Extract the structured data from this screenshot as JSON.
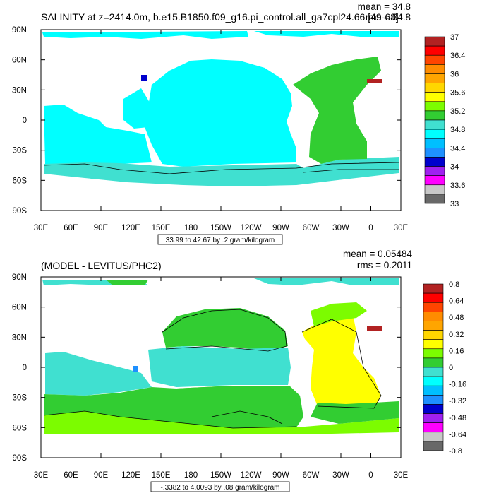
{
  "chart_data": [
    {
      "type": "heatmap",
      "title": "SALINITY at z=2414.0m, b.e15.B1850.f09_g16.pi_control.all_ga7cpl24.66 [49-68]",
      "stats": {
        "mean": "mean = 34.8",
        "rms": "rms = 34.8"
      },
      "ylim": [
        -90,
        90
      ],
      "xlim": [
        30,
        390
      ],
      "x_ticks": [
        "30E",
        "60E",
        "90E",
        "120E",
        "150E",
        "180",
        "150W",
        "120W",
        "90W",
        "60W",
        "30W",
        "0",
        "30E"
      ],
      "y_ticks": [
        "90N",
        "60N",
        "30N",
        "0",
        "30S",
        "60S",
        "90S"
      ],
      "range_label": "33.99 to 42.67 by .2 gram/kilogram",
      "colorbar": {
        "colors": [
          "#686868",
          "#c8c8c8",
          "#ff00ff",
          "#a020f0",
          "#0000cd",
          "#1e90ff",
          "#00bfff",
          "#00ffff",
          "#40e0d0",
          "#32cd32",
          "#7cfc00",
          "#ffff00",
          "#ffd700",
          "#ffa500",
          "#ff8c00",
          "#ff4500",
          "#ff0000",
          "#b22222"
        ],
        "labels": [
          "33",
          "33.6",
          "34",
          "34.4",
          "34.8",
          "35.2",
          "35.6",
          "36",
          "36.4",
          "37"
        ]
      }
    },
    {
      "type": "heatmap",
      "title": "(MODEL - LEVITUS/PHC2)",
      "stats": {
        "mean": "mean = 0.05484",
        "rms": "rms = 0.2011"
      },
      "ylim": [
        -90,
        90
      ],
      "xlim": [
        30,
        390
      ],
      "x_ticks": [
        "30E",
        "60E",
        "90E",
        "120E",
        "150E",
        "180",
        "150W",
        "120W",
        "90W",
        "60W",
        "30W",
        "0",
        "30E"
      ],
      "y_ticks": [
        "90N",
        "60N",
        "30N",
        "0",
        "30S",
        "60S",
        "90S"
      ],
      "range_label": "-.3382 to 4.0093 by .08 gram/kilogram",
      "colorbar": {
        "colors": [
          "#686868",
          "#c8c8c8",
          "#ff00ff",
          "#a020f0",
          "#0000cd",
          "#1e90ff",
          "#00bfff",
          "#00ffff",
          "#40e0d0",
          "#32cd32",
          "#7cfc00",
          "#ffff00",
          "#ffd700",
          "#ffa500",
          "#ff8c00",
          "#ff4500",
          "#ff0000",
          "#b22222"
        ],
        "labels": [
          "-0.8",
          "-0.64",
          "-0.48",
          "-0.32",
          "-0.16",
          "0",
          "0.16",
          "0.32",
          "0.48",
          "0.64",
          "0.8"
        ]
      }
    }
  ]
}
